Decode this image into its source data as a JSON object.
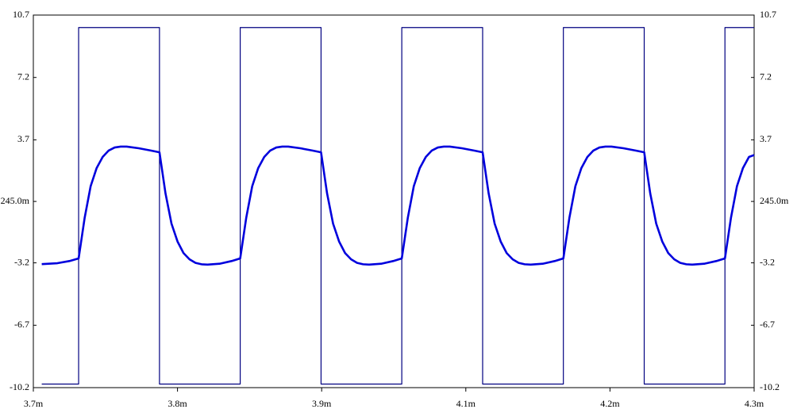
{
  "chart_data": {
    "type": "line",
    "xlim": [
      3.7,
      4.3
    ],
    "xticks": [
      {
        "value": 3.7,
        "label": "3.7m"
      },
      {
        "value": 3.82,
        "label": "3.8m"
      },
      {
        "value": 3.94,
        "label": "3.9m"
      },
      {
        "value": 4.06,
        "label": "4.1m"
      },
      {
        "value": 4.18,
        "label": "4.2m"
      },
      {
        "value": 4.3,
        "label": "4.3m"
      }
    ],
    "ylim": [
      -10.2,
      10.7
    ],
    "yticks": [
      10.7,
      7.2,
      3.7,
      {
        "value": 0.245,
        "label": "245.0m"
      },
      -3.2,
      -6.7,
      -10.2
    ],
    "y2lim": [
      -10.2,
      10.7
    ],
    "y2ticks": [
      10.7,
      7.2,
      3.7,
      {
        "value": 0.245,
        "label": "245.0m"
      },
      -3.2,
      -6.7,
      -10.2
    ],
    "series": [
      {
        "color": "#000080",
        "x": [
          3.707,
          3.7377,
          3.7377,
          3.805,
          3.805,
          3.8722,
          3.8722,
          3.9395,
          3.9395,
          4.0067,
          4.0067,
          4.074,
          4.074,
          4.1412,
          4.1412,
          4.2085,
          4.2085,
          4.2757,
          4.2757,
          4.3
        ],
        "values": [
          -10,
          -10,
          10,
          10,
          -10,
          -10,
          10,
          10,
          -10,
          -10,
          10,
          10,
          -10,
          -10,
          10,
          10,
          -10,
          -10,
          10,
          10
        ]
      },
      {
        "color": "#0000dd",
        "x": [
          3.707,
          3.72,
          3.73,
          3.7377,
          3.7427,
          3.7477,
          3.7527,
          3.7577,
          3.7627,
          3.7677,
          3.7727,
          3.7777,
          3.7877,
          3.7977,
          3.805,
          3.81,
          3.815,
          3.82,
          3.825,
          3.83,
          3.835,
          3.84,
          3.845,
          3.855,
          3.865,
          3.8722,
          3.8772,
          3.8822,
          3.8872,
          3.8922,
          3.8972,
          3.9022,
          3.9072,
          3.9122,
          3.9222,
          3.9322,
          3.9395,
          3.9445,
          3.9495,
          3.9545,
          3.9595,
          3.9645,
          3.9695,
          3.9745,
          3.9795,
          3.9895,
          3.9995,
          4.0067,
          4.0117,
          4.0167,
          4.0217,
          4.0267,
          4.0317,
          4.0367,
          4.0417,
          4.0467,
          4.0567,
          4.0667,
          4.074,
          4.079,
          4.084,
          4.089,
          4.094,
          4.099,
          4.104,
          4.109,
          4.114,
          4.124,
          4.134,
          4.1412,
          4.1462,
          4.1512,
          4.1562,
          4.1612,
          4.1662,
          4.1712,
          4.1762,
          4.1812,
          4.1912,
          4.2012,
          4.2085,
          4.2135,
          4.2185,
          4.2235,
          4.2285,
          4.2335,
          4.2385,
          4.2435,
          4.2485,
          4.2585,
          4.2685,
          4.2757,
          4.2807,
          4.2857,
          4.2907,
          4.2957,
          4.3
        ],
        "values": [
          -3.27,
          -3.22,
          -3.1,
          -2.95,
          -0.68,
          1.1,
          2.12,
          2.74,
          3.1,
          3.27,
          3.32,
          3.32,
          3.23,
          3.1,
          3.0,
          0.7,
          -1.0,
          -2.0,
          -2.65,
          -3.0,
          -3.2,
          -3.28,
          -3.3,
          -3.25,
          -3.1,
          -2.95,
          -0.68,
          1.1,
          2.12,
          2.74,
          3.1,
          3.27,
          3.32,
          3.32,
          3.23,
          3.1,
          3.0,
          0.7,
          -1.0,
          -2.0,
          -2.65,
          -3.0,
          -3.2,
          -3.28,
          -3.3,
          -3.25,
          -3.1,
          -2.95,
          -0.68,
          1.1,
          2.12,
          2.74,
          3.1,
          3.27,
          3.32,
          3.32,
          3.23,
          3.1,
          3.0,
          0.7,
          -1.0,
          -2.0,
          -2.65,
          -3.0,
          -3.2,
          -3.28,
          -3.3,
          -3.25,
          -3.1,
          -2.95,
          -0.68,
          1.1,
          2.12,
          2.74,
          3.1,
          3.27,
          3.32,
          3.32,
          3.23,
          3.1,
          3.0,
          0.7,
          -1.0,
          -2.0,
          -2.65,
          -3.0,
          -3.2,
          -3.28,
          -3.3,
          -3.25,
          -3.1,
          -2.95,
          -0.68,
          1.1,
          2.12,
          2.74,
          2.85
        ]
      }
    ]
  }
}
